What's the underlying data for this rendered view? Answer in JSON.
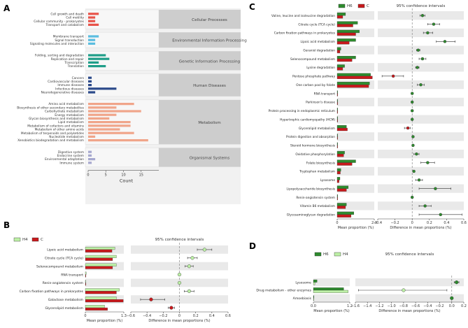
{
  "panels": {
    "A": "A",
    "B": "B",
    "C": "C",
    "D": "D"
  },
  "chart_data": [
    {
      "panel": "A",
      "type": "bar",
      "orientation": "horizontal",
      "xlabel": "Count",
      "xlim": [
        0,
        20
      ],
      "xticks": [
        0,
        5,
        10,
        15
      ],
      "groups": [
        {
          "name": "Cellular Processes",
          "color": "#e8534a",
          "items": [
            {
              "label": "Cell growth and death",
              "value": 3
            },
            {
              "label": "Cell motility",
              "value": 2
            },
            {
              "label": "Cellular community - prokaryotes",
              "value": 2
            },
            {
              "label": "Transport and catabolism",
              "value": 3
            }
          ]
        },
        {
          "name": "Environmental Information Processing",
          "color": "#5bbde0",
          "items": [
            {
              "label": "Membrane transport",
              "value": 3
            },
            {
              "label": "Signal transduction",
              "value": 2
            },
            {
              "label": "Signaling molecules and interaction",
              "value": 2
            }
          ]
        },
        {
          "name": "Genetic Information Processing",
          "color": "#1f9e89",
          "items": [
            {
              "label": "Folding, sorting and degradation",
              "value": 5
            },
            {
              "label": "Replication and repair",
              "value": 6
            },
            {
              "label": "Transcription",
              "value": 3
            },
            {
              "label": "Translation",
              "value": 5
            }
          ]
        },
        {
          "name": "Human Diseases",
          "color": "#2c4a8a",
          "items": [
            {
              "label": "Cancers",
              "value": 1
            },
            {
              "label": "Cardiovascular diseases",
              "value": 1
            },
            {
              "label": "Immune diseases",
              "value": 1
            },
            {
              "label": "Infectious diseases",
              "value": 8
            },
            {
              "label": "Neurodegenerative diseases",
              "value": 2
            }
          ]
        },
        {
          "name": "Metabolism",
          "color": "#f0a58a",
          "items": [
            {
              "label": "Amino acid metabolism",
              "value": 13
            },
            {
              "label": "Biosynthesis of other secondary metabolites",
              "value": 8
            },
            {
              "label": "Carbohydrate metabolism",
              "value": 15
            },
            {
              "label": "Energy metabolism",
              "value": 8
            },
            {
              "label": "Glycan biosynthesis and metabolism",
              "value": 6
            },
            {
              "label": "Lipid metabolism",
              "value": 12
            },
            {
              "label": "Metabolism of cofactors and vitamins",
              "value": 12
            },
            {
              "label": "Metabolism of other amino acids",
              "value": 9
            },
            {
              "label": "Metabolism of terpenoids and polyketides",
              "value": 13
            },
            {
              "label": "Nucleotide metabolism",
              "value": 2
            },
            {
              "label": "Xenobiotics biodegradation and metabolism",
              "value": 17
            }
          ]
        },
        {
          "name": "Organismal Systems",
          "color": "#a7a9cf",
          "items": [
            {
              "label": "Digestive system",
              "value": 1
            },
            {
              "label": "Endocrine system",
              "value": 1
            },
            {
              "label": "Environmental adaptation",
              "value": 2
            },
            {
              "label": "Immune system",
              "value": 1
            }
          ]
        }
      ]
    },
    {
      "panel": "B",
      "type": "bar",
      "legend": [
        {
          "name": "H4",
          "color": "#bdf0a6"
        },
        {
          "name": "C",
          "color": "#c8191c"
        }
      ],
      "ci_title": "95% confidence intervals",
      "xlabel": "Mean proportion (%)",
      "xlim": [
        0,
        1.3
      ],
      "xticks": [
        "0",
        "1.3"
      ],
      "diff_xlabel": "Difference in mean proportions (%)",
      "diff_xlim": [
        -0.6,
        0.6
      ],
      "diff_xticks": [
        "−0.6",
        "−0.4",
        "−0.2",
        "0",
        "0.2",
        "0.4",
        "0.6"
      ],
      "rows": [
        {
          "label": "Lipoic acid metabolism",
          "a": 1.0,
          "b": 0.9,
          "diff": 0.31,
          "lo": 0.22,
          "hi": 0.4
        },
        {
          "label": "Citrate cycle (TCA cycle)",
          "a": 1.05,
          "b": 0.92,
          "diff": 0.16,
          "lo": 0.1,
          "hi": 0.22
        },
        {
          "label": "Selenocompound metabolism",
          "a": 1.05,
          "b": 0.92,
          "diff": 0.12,
          "lo": 0.07,
          "hi": 0.17
        },
        {
          "label": "RNA transport",
          "a": 0.03,
          "b": 0.02,
          "diff": 0.0,
          "lo": -0.01,
          "hi": 0.01
        },
        {
          "label": "Renin-angiotensin system",
          "a": 0.02,
          "b": 0.01,
          "diff": 0.0,
          "lo": -0.01,
          "hi": 0.01
        },
        {
          "label": "Carbon fixation pathways in prokaryotes",
          "a": 1.15,
          "b": 1.05,
          "diff": 0.12,
          "lo": 0.06,
          "hi": 0.18
        },
        {
          "label": "Galactose metabolism",
          "a": 1.05,
          "b": 1.28,
          "diff": -0.35,
          "lo": -0.48,
          "hi": -0.18
        },
        {
          "label": "Glycerolipid metabolism",
          "a": 0.65,
          "b": 0.75,
          "diff": -0.1,
          "lo": -0.14,
          "hi": -0.06
        }
      ]
    },
    {
      "panel": "C",
      "type": "bar",
      "legend": [
        {
          "name": "H6",
          "color": "#2e8b2e"
        },
        {
          "name": "C",
          "color": "#c8191c"
        }
      ],
      "ci_title": "95% confidence intervals",
      "xlabel": "Mean proportion (%)",
      "xlim": [
        0,
        2.0
      ],
      "xticks": [
        "0",
        "2.0"
      ],
      "diff_xlabel": "Difference in mean proportions (%)",
      "diff_xlim": [
        -0.4,
        0.6
      ],
      "diff_xticks": [
        "−0.4",
        "−0.2",
        "0",
        "0.2",
        "0.4",
        "0.6"
      ],
      "rows": [
        {
          "label": "Valine, leucine and isoleucine degradation",
          "a": 0.45,
          "b": 0.3,
          "diff": 0.12,
          "lo": 0.09,
          "hi": 0.15
        },
        {
          "label": "Citrate cycle (TCA cycle)",
          "a": 1.1,
          "b": 0.85,
          "diff": 0.25,
          "lo": 0.18,
          "hi": 0.32
        },
        {
          "label": "Carbon fixation pathways in prokaryotes",
          "a": 1.2,
          "b": 1.0,
          "diff": 0.18,
          "lo": 0.13,
          "hi": 0.24
        },
        {
          "label": "Lipoic acid metabolism",
          "a": 1.0,
          "b": 0.65,
          "diff": 0.38,
          "lo": 0.28,
          "hi": 0.5
        },
        {
          "label": "Geraniol degradation",
          "a": 0.2,
          "b": 0.15,
          "diff": 0.07,
          "lo": 0.05,
          "hi": 0.09
        },
        {
          "label": "Selenocompound metabolism",
          "a": 1.0,
          "b": 0.8,
          "diff": 0.12,
          "lo": 0.08,
          "hi": 0.16
        },
        {
          "label": "Lysine degradation",
          "a": 0.4,
          "b": 0.3,
          "diff": 0.06,
          "lo": 0.04,
          "hi": 0.08
        },
        {
          "label": "Pentose phosphate pathway",
          "a": 1.8,
          "b": 1.9,
          "diff": -0.22,
          "lo": -0.35,
          "hi": -0.1
        },
        {
          "label": "One carbon pool by folate",
          "a": 1.75,
          "b": 1.7,
          "diff": 0.1,
          "lo": 0.06,
          "hi": 0.14
        },
        {
          "label": "RNA transport",
          "a": 0.02,
          "b": 0.01,
          "diff": 0.0,
          "lo": -0.01,
          "hi": 0.01
        },
        {
          "label": "Parkinson's disease",
          "a": 0.01,
          "b": 0.01,
          "diff": 0.0,
          "lo": -0.01,
          "hi": 0.01
        },
        {
          "label": "Protein processing in endoplasmic reticulum",
          "a": 0.01,
          "b": 0.01,
          "diff": 0.0,
          "lo": -0.01,
          "hi": 0.01
        },
        {
          "label": "Hypertrophic cardiomyopathy (HCM)",
          "a": 0.01,
          "b": 0.01,
          "diff": 0.0,
          "lo": -0.01,
          "hi": 0.01
        },
        {
          "label": "Glycerolipid metabolism",
          "a": 0.5,
          "b": 0.55,
          "diff": -0.05,
          "lo": -0.09,
          "hi": -0.02
        },
        {
          "label": "Protein digestion and absorption",
          "a": 0.02,
          "b": 0.01,
          "diff": 0.01,
          "lo": 0.0,
          "hi": 0.02
        },
        {
          "label": "Steroid hormone biosynthesis",
          "a": 0.03,
          "b": 0.02,
          "diff": 0.01,
          "lo": 0.0,
          "hi": 0.02
        },
        {
          "label": "Oxidative phosphorylation",
          "a": 0.4,
          "b": 0.35,
          "diff": 0.05,
          "lo": 0.02,
          "hi": 0.08
        },
        {
          "label": "Folate biosynthesis",
          "a": 1.0,
          "b": 0.8,
          "diff": 0.18,
          "lo": 0.1,
          "hi": 0.26
        },
        {
          "label": "Tryptophan metabolism",
          "a": 0.2,
          "b": 0.17,
          "diff": 0.02,
          "lo": 0.01,
          "hi": 0.03
        },
        {
          "label": "Lysosome",
          "a": 0.15,
          "b": 0.1,
          "diff": 0.08,
          "lo": 0.04,
          "hi": 0.12
        },
        {
          "label": "Lipopolysaccharide biosynthesis",
          "a": 0.6,
          "b": 0.5,
          "diff": 0.27,
          "lo": 0.08,
          "hi": 0.45
        },
        {
          "label": "Renin-angiotensin system",
          "a": 0.02,
          "b": 0.01,
          "diff": 0.0,
          "lo": -0.01,
          "hi": 0.01
        },
        {
          "label": "Vitamin B6 metabolism",
          "a": 0.5,
          "b": 0.45,
          "diff": 0.15,
          "lo": 0.08,
          "hi": 0.22
        },
        {
          "label": "Glycosaminoglycan degradation",
          "a": 0.9,
          "b": 0.75,
          "diff": 0.33,
          "lo": 0.08,
          "hi": 0.58
        }
      ]
    },
    {
      "panel": "D",
      "type": "bar",
      "legend": [
        {
          "name": "H6",
          "color": "#2e8b2e"
        },
        {
          "name": "H4",
          "color": "#bdf0a6"
        }
      ],
      "ci_title": "95% confidence intervals",
      "xlabel": "Mean proportion (%)",
      "xlim": [
        0,
        1.2
      ],
      "xticks": [
        "0.0",
        "1.2"
      ],
      "diff_xlabel": "Difference in mean proportions (%)",
      "diff_xlim": [
        -1.6,
        0.2
      ],
      "diff_xticks": [
        "−1.6",
        "−1.4",
        "−1.2",
        "−1.0",
        "−0.8",
        "−0.6",
        "−0.4",
        "−0.2",
        "0.0",
        "0.2"
      ],
      "rows": [
        {
          "label": "Lysosome",
          "a": 0.12,
          "b": 0.05,
          "diff": 0.08,
          "lo": 0.04,
          "hi": 0.12
        },
        {
          "label": "Drug metabolism - other enzymes",
          "a": 1.0,
          "b": 1.15,
          "diff": -0.8,
          "lo": -1.55,
          "hi": -0.08
        },
        {
          "label": "Amoebiasis",
          "a": 0.01,
          "b": 0.01,
          "diff": 0.0,
          "lo": -0.01,
          "hi": 0.01
        }
      ]
    }
  ]
}
